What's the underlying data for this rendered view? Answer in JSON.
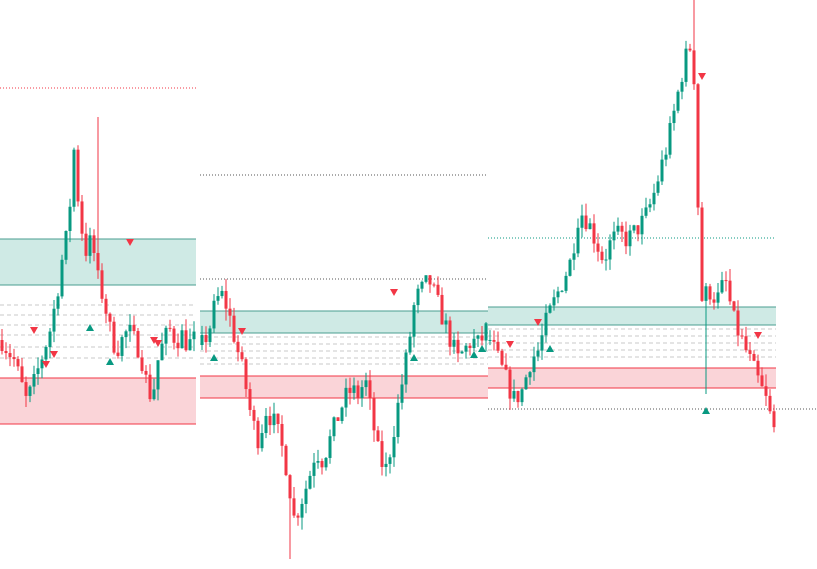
{
  "chart_data": {
    "type": "candlestick",
    "title": "",
    "xlabel": "",
    "ylabel": "",
    "ylim": [
      0,
      569
    ],
    "grid": false,
    "colors": {
      "up": "#089981",
      "down": "#f23645",
      "supply_zone_fill": "#cfeae5",
      "supply_zone_border": "#4a9e90",
      "demand_zone_fill": "#fad4d8",
      "demand_zone_border": "#f23645",
      "level_dashed": "#c8c8c8"
    },
    "segments": [
      {
        "bars": [
          0,
          48
        ],
        "path": [
          229,
          219,
          209,
          189,
          169,
          179,
          199,
          219,
          239,
          269,
          309,
          339,
          419,
          349,
          319,
          329,
          289,
          269,
          239,
          219,
          229,
          239,
          229,
          219,
          189,
          169,
          209,
          229,
          239,
          229,
          234,
          224,
          229
        ],
        "green_zone": [
          284,
          330
        ],
        "red_zone": [
          145,
          191
        ],
        "dashed_levels": [
          264,
          254,
          244,
          234,
          222,
          211
        ],
        "dotted_lines": [
          {
            "price": 481,
            "color": "#f23645"
          }
        ]
      },
      {
        "bars": [
          50,
          121
        ],
        "path": [
          224,
          239,
          269,
          274,
          249,
          219,
          189,
          149,
          129,
          159,
          149,
          129,
          99,
          49,
          69,
          89,
          119,
          109,
          129,
          149,
          169,
          179,
          174,
          189,
          149,
          109,
          99,
          139,
          179,
          219,
          269,
          279,
          289,
          269,
          249,
          229,
          209,
          219,
          229,
          224,
          239
        ],
        "green_zone": [
          236,
          258
        ],
        "red_zone": [
          171,
          193
        ],
        "dashed_levels": [
          232,
          225,
          218,
          211,
          205
        ],
        "dotted_lines": [
          {
            "price": 394,
            "color": "#555555"
          },
          {
            "price": 290,
            "color": "#555555"
          }
        ]
      },
      {
        "bars": [
          122,
          193
        ],
        "path": [
          229,
          209,
          189,
          169,
          179,
          209,
          219,
          249,
          269,
          289,
          309,
          359,
          349,
          329,
          309,
          329,
          334,
          329,
          339,
          349,
          369,
          399,
          429,
          469,
          509,
          529,
          269,
          279,
          269,
          289,
          249,
          229,
          209,
          189,
          169,
          139
        ],
        "green_zone": [
          244,
          262
        ],
        "red_zone": [
          181,
          201
        ],
        "dashed_levels": [
          240,
          233,
          226,
          219,
          212
        ],
        "dotted_lines": [
          {
            "price": 331,
            "color": "#089981"
          },
          {
            "price": 160,
            "color": "#555555",
            "extend_right": true
          }
        ]
      }
    ],
    "extremes": [
      {
        "bar": 24,
        "high": 452
      },
      {
        "bar": 173,
        "high": 569
      },
      {
        "bar": 72,
        "low": 10
      },
      {
        "bar": 176,
        "low": 175
      }
    ],
    "signals": {
      "sell": [
        [
          8,
          239
        ],
        [
          11,
          205
        ],
        [
          13,
          215
        ],
        [
          32,
          327
        ],
        [
          38,
          229
        ],
        [
          39,
          226
        ],
        [
          60,
          238
        ],
        [
          98,
          277
        ],
        [
          127,
          225
        ],
        [
          134,
          247
        ],
        [
          175,
          493
        ],
        [
          189,
          234
        ]
      ],
      "buy": [
        [
          22,
          241
        ],
        [
          27,
          207
        ],
        [
          53,
          211
        ],
        [
          103,
          211
        ],
        [
          118,
          214
        ],
        [
          120,
          220
        ],
        [
          137,
          220
        ],
        [
          176,
          158
        ]
      ]
    }
  }
}
